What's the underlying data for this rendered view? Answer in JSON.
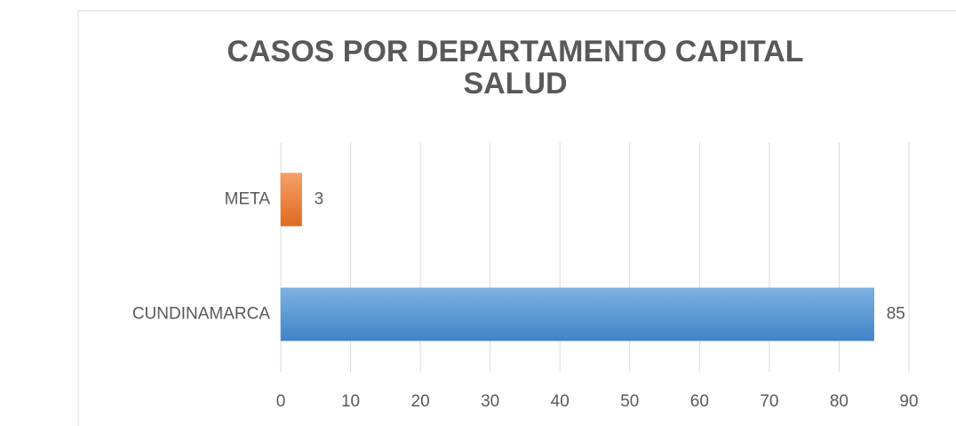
{
  "chart_data": {
    "type": "bar",
    "orientation": "horizontal",
    "title": "CASOS POR DEPARTAMENTO CAPITAL SALUD",
    "categories": [
      "CUNDINAMARCA",
      "META"
    ],
    "values": [
      85,
      3
    ],
    "colors": [
      "#5b9bd5",
      "#ed7d31"
    ],
    "xlim": [
      0,
      90
    ],
    "xticks": [
      0,
      10,
      20,
      30,
      40,
      50,
      60,
      70,
      80,
      90
    ],
    "grid": true
  }
}
